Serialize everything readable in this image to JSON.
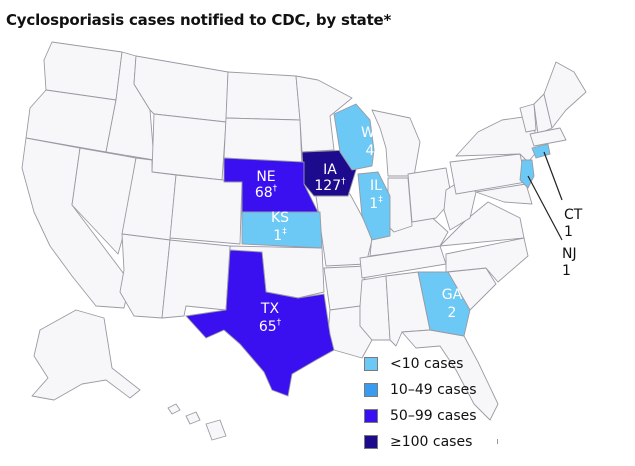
{
  "title": "Cyclosporiasis cases notified to CDC, by state*",
  "colors": {
    "background": "#ffffff",
    "state_default": "#f7f7fa",
    "state_border": "#9a9aa4",
    "lt10": "#6cc8f4",
    "10to49": "#3a9af0",
    "50to99": "#3a0ff0",
    "gte100": "#1d0b8e"
  },
  "states": [
    {
      "id": "IA",
      "abbr": "IA",
      "cases": "127",
      "footnote": "†",
      "category": "gte100"
    },
    {
      "id": "NE",
      "abbr": "NE",
      "cases": "68",
      "footnote": "†",
      "category": "50to99"
    },
    {
      "id": "TX",
      "abbr": "TX",
      "cases": "65",
      "footnote": "†",
      "category": "50to99"
    },
    {
      "id": "WI",
      "abbr": "WI",
      "cases": "4",
      "footnote": "",
      "category": "lt10"
    },
    {
      "id": "IL",
      "abbr": "IL",
      "cases": "1",
      "footnote": "‡",
      "category": "lt10"
    },
    {
      "id": "KS",
      "abbr": "KS",
      "cases": "1",
      "footnote": "‡",
      "category": "lt10"
    },
    {
      "id": "GA",
      "abbr": "GA",
      "cases": "2",
      "footnote": "",
      "category": "lt10"
    },
    {
      "id": "CT",
      "abbr": "CT",
      "cases": "1",
      "footnote": "",
      "category": "lt10"
    },
    {
      "id": "NJ",
      "abbr": "NJ",
      "cases": "1",
      "footnote": "",
      "category": "lt10"
    }
  ],
  "legend": [
    {
      "label": "<10 cases",
      "category": "lt10"
    },
    {
      "label": "10–49 cases",
      "category": "10to49"
    },
    {
      "label": "50–99 cases",
      "category": "50to99"
    },
    {
      "label": "≥100 cases",
      "category": "gte100"
    }
  ]
}
